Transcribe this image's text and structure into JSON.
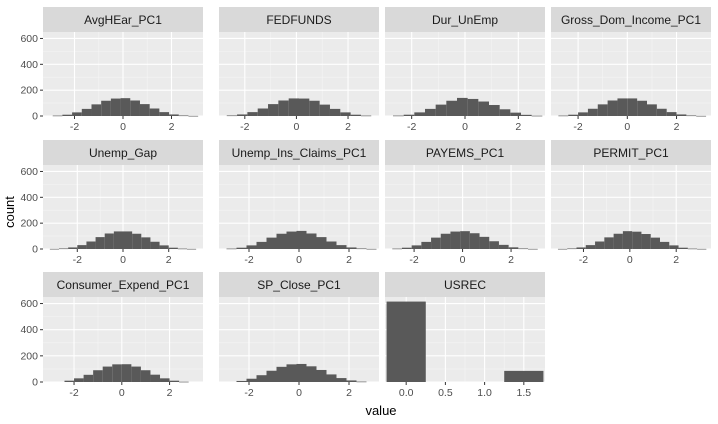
{
  "chart_data": {
    "type": "bar",
    "xlabel": "value",
    "ylabel": "count",
    "facet_layout": "wrap, 4 columns",
    "grid": true,
    "panel_background": "#ebebeb",
    "bar_color": "#595959",
    "strip_color": "#d9d9d9",
    "ylim": [
      0,
      650
    ],
    "y_ticks": [
      0,
      200,
      400,
      600
    ],
    "panels": [
      {
        "title": "AvgHEar_PC1",
        "xlim": [
          -3.3,
          3.3
        ],
        "x_ticks": [
          -2,
          0,
          2
        ],
        "bins": [
          {
            "x0": -2.9,
            "x1": -2.5,
            "count": 3
          },
          {
            "x0": -2.5,
            "x1": -2.1,
            "count": 10
          },
          {
            "x0": -2.1,
            "x1": -1.7,
            "count": 28
          },
          {
            "x0": -1.7,
            "x1": -1.3,
            "count": 55
          },
          {
            "x0": -1.3,
            "x1": -0.9,
            "count": 90
          },
          {
            "x0": -0.9,
            "x1": -0.5,
            "count": 118
          },
          {
            "x0": -0.5,
            "x1": -0.1,
            "count": 135
          },
          {
            "x0": -0.1,
            "x1": 0.3,
            "count": 138
          },
          {
            "x0": 0.3,
            "x1": 0.7,
            "count": 120
          },
          {
            "x0": 0.7,
            "x1": 1.1,
            "count": 92
          },
          {
            "x0": 1.1,
            "x1": 1.5,
            "count": 58
          },
          {
            "x0": 1.5,
            "x1": 1.9,
            "count": 30
          },
          {
            "x0": 1.9,
            "x1": 2.3,
            "count": 12
          },
          {
            "x0": 2.3,
            "x1": 2.7,
            "count": 4
          },
          {
            "x0": 2.7,
            "x1": 3.1,
            "count": 1
          }
        ]
      },
      {
        "title": "FEDFUNDS",
        "xlim": [
          -3.0,
          3.2
        ],
        "x_ticks": [
          -2,
          0,
          2
        ],
        "bins": [
          {
            "x0": -2.7,
            "x1": -2.3,
            "count": 4
          },
          {
            "x0": -2.3,
            "x1": -1.9,
            "count": 12
          },
          {
            "x0": -1.9,
            "x1": -1.5,
            "count": 30
          },
          {
            "x0": -1.5,
            "x1": -1.1,
            "count": 58
          },
          {
            "x0": -1.1,
            "x1": -0.7,
            "count": 92
          },
          {
            "x0": -0.7,
            "x1": -0.3,
            "count": 120
          },
          {
            "x0": -0.3,
            "x1": 0.1,
            "count": 136
          },
          {
            "x0": 0.1,
            "x1": 0.5,
            "count": 135
          },
          {
            "x0": 0.5,
            "x1": 0.9,
            "count": 118
          },
          {
            "x0": 0.9,
            "x1": 1.3,
            "count": 88
          },
          {
            "x0": 1.3,
            "x1": 1.7,
            "count": 55
          },
          {
            "x0": 1.7,
            "x1": 2.1,
            "count": 28
          },
          {
            "x0": 2.1,
            "x1": 2.5,
            "count": 10
          },
          {
            "x0": 2.5,
            "x1": 2.9,
            "count": 3
          }
        ]
      },
      {
        "title": "Dur_UnEmp",
        "xlim": [
          -3.0,
          3.0
        ],
        "x_ticks": [
          -2,
          0,
          2
        ],
        "bins": [
          {
            "x0": -2.7,
            "x1": -2.3,
            "count": 3
          },
          {
            "x0": -2.3,
            "x1": -1.9,
            "count": 10
          },
          {
            "x0": -1.9,
            "x1": -1.5,
            "count": 28
          },
          {
            "x0": -1.5,
            "x1": -1.1,
            "count": 55
          },
          {
            "x0": -1.1,
            "x1": -0.7,
            "count": 88
          },
          {
            "x0": -0.7,
            "x1": -0.3,
            "count": 118
          },
          {
            "x0": -0.3,
            "x1": 0.1,
            "count": 140
          },
          {
            "x0": 0.1,
            "x1": 0.5,
            "count": 132
          },
          {
            "x0": 0.5,
            "x1": 0.9,
            "count": 112
          },
          {
            "x0": 0.9,
            "x1": 1.3,
            "count": 85
          },
          {
            "x0": 1.3,
            "x1": 1.7,
            "count": 52
          },
          {
            "x0": 1.7,
            "x1": 2.1,
            "count": 26
          },
          {
            "x0": 2.1,
            "x1": 2.5,
            "count": 9
          },
          {
            "x0": 2.5,
            "x1": 2.9,
            "count": 2
          }
        ]
      },
      {
        "title": "Gross_Dom_Income_PC1",
        "xlim": [
          -3.1,
          3.4
        ],
        "x_ticks": [
          -2,
          0,
          2
        ],
        "bins": [
          {
            "x0": -2.8,
            "x1": -2.4,
            "count": 3
          },
          {
            "x0": -2.4,
            "x1": -2.0,
            "count": 10
          },
          {
            "x0": -2.0,
            "x1": -1.6,
            "count": 28
          },
          {
            "x0": -1.6,
            "x1": -1.2,
            "count": 56
          },
          {
            "x0": -1.2,
            "x1": -0.8,
            "count": 90
          },
          {
            "x0": -0.8,
            "x1": -0.4,
            "count": 120
          },
          {
            "x0": -0.4,
            "x1": 0.0,
            "count": 136
          },
          {
            "x0": 0.0,
            "x1": 0.4,
            "count": 136
          },
          {
            "x0": 0.4,
            "x1": 0.8,
            "count": 118
          },
          {
            "x0": 0.8,
            "x1": 1.2,
            "count": 90
          },
          {
            "x0": 1.2,
            "x1": 1.6,
            "count": 56
          },
          {
            "x0": 1.6,
            "x1": 2.0,
            "count": 30
          },
          {
            "x0": 2.0,
            "x1": 2.4,
            "count": 12
          },
          {
            "x0": 2.4,
            "x1": 2.8,
            "count": 4
          },
          {
            "x0": 2.8,
            "x1": 3.2,
            "count": 1
          }
        ]
      },
      {
        "title": "Unemp_Gap",
        "xlim": [
          -3.5,
          3.5
        ],
        "x_ticks": [
          -2,
          0,
          2
        ],
        "bins": [
          {
            "x0": -3.2,
            "x1": -2.8,
            "count": 1
          },
          {
            "x0": -2.8,
            "x1": -2.4,
            "count": 4
          },
          {
            "x0": -2.4,
            "x1": -2.0,
            "count": 12
          },
          {
            "x0": -2.0,
            "x1": -1.6,
            "count": 30
          },
          {
            "x0": -1.6,
            "x1": -1.2,
            "count": 58
          },
          {
            "x0": -1.2,
            "x1": -0.8,
            "count": 92
          },
          {
            "x0": -0.8,
            "x1": -0.4,
            "count": 120
          },
          {
            "x0": -0.4,
            "x1": 0.0,
            "count": 136
          },
          {
            "x0": 0.0,
            "x1": 0.4,
            "count": 136
          },
          {
            "x0": 0.4,
            "x1": 0.8,
            "count": 118
          },
          {
            "x0": 0.8,
            "x1": 1.2,
            "count": 90
          },
          {
            "x0": 1.2,
            "x1": 1.6,
            "count": 56
          },
          {
            "x0": 1.6,
            "x1": 2.0,
            "count": 28
          },
          {
            "x0": 2.0,
            "x1": 2.4,
            "count": 10
          },
          {
            "x0": 2.4,
            "x1": 2.8,
            "count": 3
          },
          {
            "x0": 2.8,
            "x1": 3.2,
            "count": 1
          }
        ]
      },
      {
        "title": "Unemp_Ins_Claims_PC1",
        "xlim": [
          -3.2,
          3.2
        ],
        "x_ticks": [
          -2,
          0,
          2
        ],
        "bins": [
          {
            "x0": -2.9,
            "x1": -2.5,
            "count": 3
          },
          {
            "x0": -2.5,
            "x1": -2.1,
            "count": 10
          },
          {
            "x0": -2.1,
            "x1": -1.7,
            "count": 28
          },
          {
            "x0": -1.7,
            "x1": -1.3,
            "count": 55
          },
          {
            "x0": -1.3,
            "x1": -0.9,
            "count": 88
          },
          {
            "x0": -0.9,
            "x1": -0.5,
            "count": 118
          },
          {
            "x0": -0.5,
            "x1": -0.1,
            "count": 135
          },
          {
            "x0": -0.1,
            "x1": 0.3,
            "count": 140
          },
          {
            "x0": 0.3,
            "x1": 0.7,
            "count": 120
          },
          {
            "x0": 0.7,
            "x1": 1.1,
            "count": 92
          },
          {
            "x0": 1.1,
            "x1": 1.5,
            "count": 58
          },
          {
            "x0": 1.5,
            "x1": 1.9,
            "count": 30
          },
          {
            "x0": 1.9,
            "x1": 2.3,
            "count": 12
          },
          {
            "x0": 2.3,
            "x1": 2.7,
            "count": 4
          },
          {
            "x0": 2.7,
            "x1": 3.1,
            "count": 1
          }
        ]
      },
      {
        "title": "PAYEMS_PC1",
        "xlim": [
          -3.2,
          3.4
        ],
        "x_ticks": [
          -2,
          0,
          2
        ],
        "bins": [
          {
            "x0": -2.9,
            "x1": -2.5,
            "count": 3
          },
          {
            "x0": -2.5,
            "x1": -2.1,
            "count": 10
          },
          {
            "x0": -2.1,
            "x1": -1.7,
            "count": 28
          },
          {
            "x0": -1.7,
            "x1": -1.3,
            "count": 55
          },
          {
            "x0": -1.3,
            "x1": -0.9,
            "count": 88
          },
          {
            "x0": -0.9,
            "x1": -0.5,
            "count": 118
          },
          {
            "x0": -0.5,
            "x1": -0.1,
            "count": 135
          },
          {
            "x0": -0.1,
            "x1": 0.3,
            "count": 138
          },
          {
            "x0": 0.3,
            "x1": 0.7,
            "count": 122
          },
          {
            "x0": 0.7,
            "x1": 1.1,
            "count": 94
          },
          {
            "x0": 1.1,
            "x1": 1.5,
            "count": 60
          },
          {
            "x0": 1.5,
            "x1": 1.9,
            "count": 32
          },
          {
            "x0": 1.9,
            "x1": 2.3,
            "count": 13
          },
          {
            "x0": 2.3,
            "x1": 2.7,
            "count": 4
          },
          {
            "x0": 2.7,
            "x1": 3.1,
            "count": 1
          }
        ]
      },
      {
        "title": "PERMIT_PC1",
        "xlim": [
          -3.4,
          3.5
        ],
        "x_ticks": [
          -2,
          0,
          2
        ],
        "bins": [
          {
            "x0": -3.1,
            "x1": -2.7,
            "count": 1
          },
          {
            "x0": -2.7,
            "x1": -2.3,
            "count": 4
          },
          {
            "x0": -2.3,
            "x1": -1.9,
            "count": 12
          },
          {
            "x0": -1.9,
            "x1": -1.5,
            "count": 30
          },
          {
            "x0": -1.5,
            "x1": -1.1,
            "count": 58
          },
          {
            "x0": -1.1,
            "x1": -0.7,
            "count": 90
          },
          {
            "x0": -0.7,
            "x1": -0.3,
            "count": 118
          },
          {
            "x0": -0.3,
            "x1": 0.1,
            "count": 138
          },
          {
            "x0": 0.1,
            "x1": 0.5,
            "count": 134
          },
          {
            "x0": 0.5,
            "x1": 0.9,
            "count": 116
          },
          {
            "x0": 0.9,
            "x1": 1.3,
            "count": 88
          },
          {
            "x0": 1.3,
            "x1": 1.7,
            "count": 55
          },
          {
            "x0": 1.7,
            "x1": 2.1,
            "count": 28
          },
          {
            "x0": 2.1,
            "x1": 2.5,
            "count": 10
          },
          {
            "x0": 2.5,
            "x1": 2.9,
            "count": 3
          },
          {
            "x0": 2.9,
            "x1": 3.3,
            "count": 1
          }
        ]
      },
      {
        "title": "Consumer_Expend_PC1",
        "xlim": [
          -3.3,
          3.4
        ],
        "x_ticks": [
          -2,
          0,
          2
        ],
        "bins": [
          {
            "x0": -2.4,
            "x1": -2.0,
            "count": 10
          },
          {
            "x0": -2.0,
            "x1": -1.6,
            "count": 28
          },
          {
            "x0": -1.6,
            "x1": -1.2,
            "count": 55
          },
          {
            "x0": -1.2,
            "x1": -0.8,
            "count": 90
          },
          {
            "x0": -0.8,
            "x1": -0.4,
            "count": 118
          },
          {
            "x0": -0.4,
            "x1": 0.0,
            "count": 135
          },
          {
            "x0": 0.0,
            "x1": 0.4,
            "count": 136
          },
          {
            "x0": 0.4,
            "x1": 0.8,
            "count": 118
          },
          {
            "x0": 0.8,
            "x1": 1.2,
            "count": 90
          },
          {
            "x0": 1.2,
            "x1": 1.6,
            "count": 56
          },
          {
            "x0": 1.6,
            "x1": 2.0,
            "count": 28
          },
          {
            "x0": 2.0,
            "x1": 2.4,
            "count": 10
          },
          {
            "x0": 2.4,
            "x1": 2.8,
            "count": 2
          }
        ]
      },
      {
        "title": "SP_Close_PC1",
        "xlim": [
          -3.2,
          3.2
        ],
        "x_ticks": [
          -2,
          0,
          2
        ],
        "bins": [
          {
            "x0": -2.5,
            "x1": -2.1,
            "count": 8
          },
          {
            "x0": -2.1,
            "x1": -1.7,
            "count": 25
          },
          {
            "x0": -1.7,
            "x1": -1.3,
            "count": 52
          },
          {
            "x0": -1.3,
            "x1": -0.9,
            "count": 86
          },
          {
            "x0": -0.9,
            "x1": -0.5,
            "count": 116
          },
          {
            "x0": -0.5,
            "x1": -0.1,
            "count": 135
          },
          {
            "x0": -0.1,
            "x1": 0.3,
            "count": 138
          },
          {
            "x0": 0.3,
            "x1": 0.7,
            "count": 120
          },
          {
            "x0": 0.7,
            "x1": 1.1,
            "count": 92
          },
          {
            "x0": 1.1,
            "x1": 1.5,
            "count": 58
          },
          {
            "x0": 1.5,
            "x1": 1.9,
            "count": 30
          },
          {
            "x0": 1.9,
            "x1": 2.3,
            "count": 12
          },
          {
            "x0": 2.3,
            "x1": 2.7,
            "count": 3
          }
        ]
      },
      {
        "title": "USREC",
        "xlim": [
          -0.27,
          1.77
        ],
        "x_ticks": [
          "0.0",
          "0.5",
          "1.0",
          "1.5"
        ],
        "bins": [
          {
            "x0": -0.25,
            "x1": 0.25,
            "count": 615
          },
          {
            "x0": 1.25,
            "x1": 1.75,
            "count": 85
          }
        ]
      }
    ]
  }
}
